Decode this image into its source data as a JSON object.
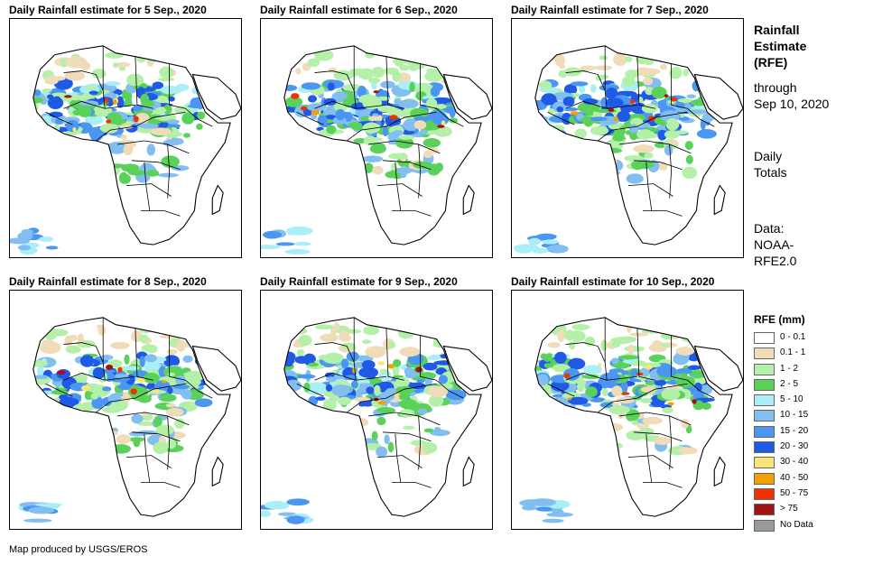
{
  "panels": [
    {
      "title": "Daily Rainfall estimate for 5 Sep., 2020"
    },
    {
      "title": "Daily Rainfall estimate for 6 Sep., 2020"
    },
    {
      "title": "Daily Rainfall estimate for 7 Sep., 2020"
    },
    {
      "title": "Daily Rainfall estimate for 8 Sep., 2020"
    },
    {
      "title": "Daily Rainfall estimate for 9 Sep., 2020"
    },
    {
      "title": "Daily Rainfall estimate for 10 Sep., 2020"
    }
  ],
  "sidebar": {
    "title_lines": [
      "Rainfall",
      "Estimate",
      "(RFE)"
    ],
    "through_lines": [
      "through",
      "Sep 10, 2020"
    ],
    "totals_lines": [
      "Daily",
      "Totals"
    ],
    "data_lines": [
      "Data:",
      "NOAA-",
      "RFE2.0"
    ]
  },
  "legend": {
    "title": "RFE (mm)",
    "items": [
      {
        "label": "0 - 0.1",
        "color": "#ffffff"
      },
      {
        "label": "0.1 - 1",
        "color": "#f0dcb8"
      },
      {
        "label": "1 - 2",
        "color": "#b4f0a8"
      },
      {
        "label": "2 - 5",
        "color": "#5ad25a"
      },
      {
        "label": "5 - 10",
        "color": "#aaeef8"
      },
      {
        "label": "10 - 15",
        "color": "#82bef0"
      },
      {
        "label": "15 - 20",
        "color": "#4b96f0"
      },
      {
        "label": "20 - 30",
        "color": "#1e5ae6"
      },
      {
        "label": "30 - 40",
        "color": "#fae678"
      },
      {
        "label": "40 - 50",
        "color": "#f5a000"
      },
      {
        "label": "50 - 75",
        "color": "#f03200"
      },
      {
        "label": "> 75",
        "color": "#a01414"
      },
      {
        "label": "No Data",
        "color": "#999999"
      }
    ]
  },
  "footer": {
    "credit": "Map produced by USGS/EROS"
  }
}
